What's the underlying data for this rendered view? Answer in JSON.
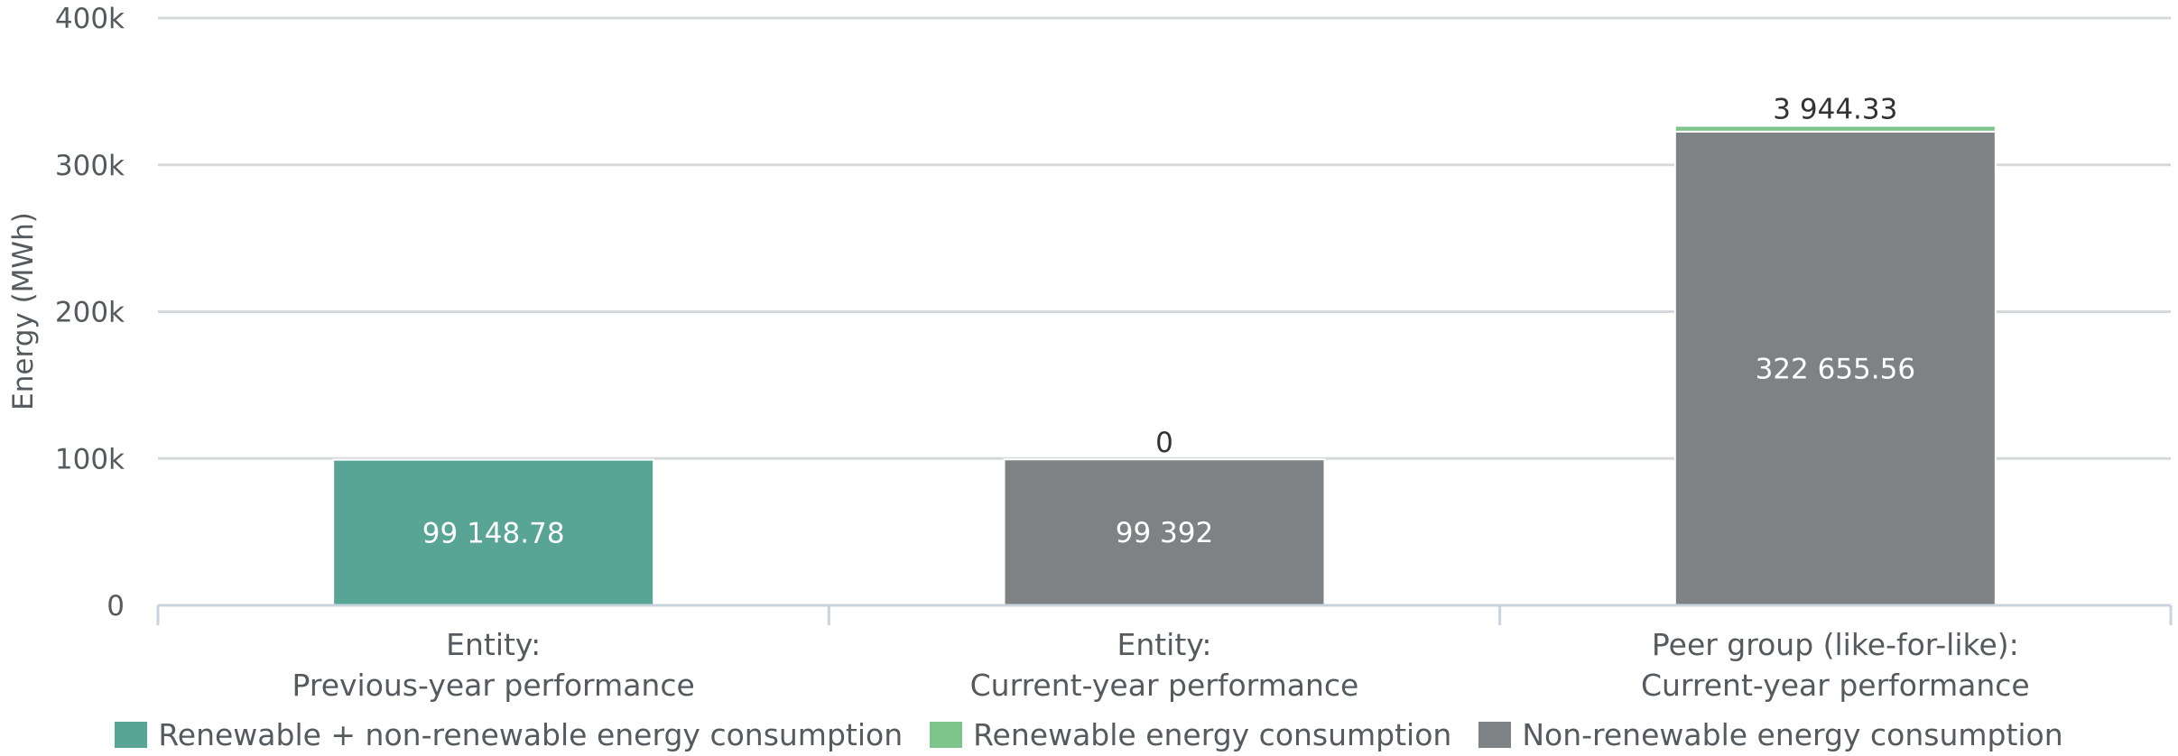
{
  "chart_data": {
    "type": "bar",
    "stacked": true,
    "ylabel": "Energy (MWh)",
    "ylim": [
      0,
      400000
    ],
    "yticks": [
      0,
      100000,
      200000,
      300000,
      400000
    ],
    "ytick_labels": [
      "0",
      "100k",
      "200k",
      "300k",
      "400k"
    ],
    "grid": true,
    "legend_position": "bottom",
    "categories": [
      [
        "Entity:",
        "Previous-year performance"
      ],
      [
        "Entity:",
        "Current-year performance"
      ],
      [
        "Peer group (like-for-like):",
        "Current-year performance"
      ]
    ],
    "series": [
      {
        "name": "Renewable + non-renewable energy consumption",
        "color": "#58a495",
        "values": [
          99148.78,
          null,
          null
        ],
        "labels": [
          "99 148.78",
          null,
          null
        ]
      },
      {
        "name": "Non-renewable energy consumption",
        "color": "#7f8285",
        "values": [
          null,
          99392,
          322655.56
        ],
        "labels": [
          null,
          "99 392",
          "322 655.56"
        ]
      },
      {
        "name": "Renewable energy consumption",
        "color": "#7dc58a",
        "values": [
          null,
          0,
          3944.33
        ],
        "labels": [
          null,
          "0",
          "3 944.33"
        ]
      }
    ],
    "legend": [
      {
        "name": "Renewable + non-renewable energy consumption",
        "color": "#58a495"
      },
      {
        "name": "Renewable energy consumption",
        "color": "#7dc58a"
      },
      {
        "name": "Non-renewable energy consumption",
        "color": "#7f8285"
      }
    ]
  }
}
